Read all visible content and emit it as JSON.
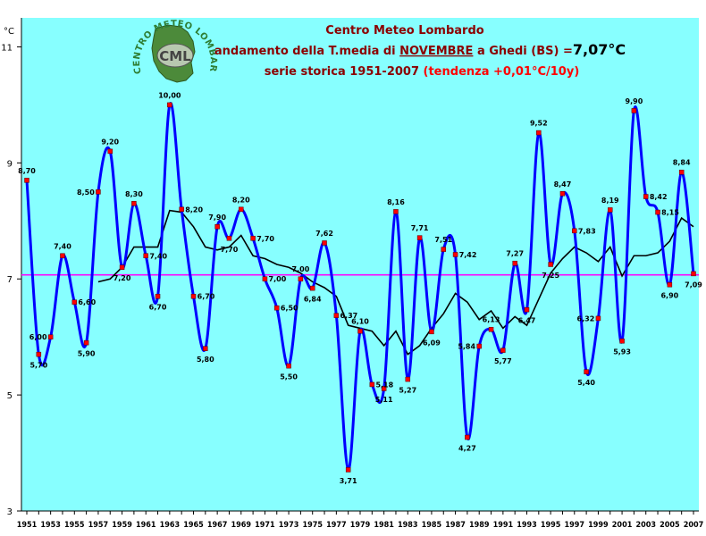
{
  "chart_data": {
    "type": "line",
    "title_line1": "Centro Meteo Lombardo",
    "title_line2_prefix": "andamento della T.media di ",
    "title_line2_month": "NOVEMBRE",
    "title_line2_suffix": " a Ghedi (BS) =",
    "title_line2_value": "7,07°C",
    "title_line3_main": "serie storica 1951-2007 ",
    "title_line3_trend": "(tendenza +0,01°C/10y)",
    "ylabel": "°C",
    "logo_text": "CENTRO METEO LOMBARDO",
    "logo_abbr": "CML",
    "ylim": [
      3,
      11.5
    ],
    "yticks": [
      "3",
      "5",
      "7",
      "9",
      "11"
    ],
    "ytick_values": [
      3,
      5,
      7,
      9,
      11
    ],
    "mean_value": 7.07,
    "x": [
      1951,
      1952,
      1953,
      1954,
      1955,
      1956,
      1957,
      1958,
      1959,
      1960,
      1961,
      1962,
      1963,
      1964,
      1965,
      1966,
      1967,
      1968,
      1969,
      1970,
      1971,
      1972,
      1973,
      1974,
      1975,
      1976,
      1977,
      1978,
      1979,
      1980,
      1981,
      1982,
      1983,
      1984,
      1985,
      1986,
      1987,
      1988,
      1989,
      1990,
      1991,
      1992,
      1993,
      1994,
      1995,
      1996,
      1997,
      1998,
      1999,
      2000,
      2001,
      2002,
      2003,
      2004,
      2005,
      2006,
      2007
    ],
    "xtick_labels": [
      "1951",
      "1953",
      "1955",
      "1957",
      "1959",
      "1961",
      "1963",
      "1965",
      "1967",
      "1969",
      "1971",
      "1973",
      "1975",
      "1977",
      "1979",
      "1981",
      "1983",
      "1985",
      "1987",
      "1989",
      "1991",
      "1993",
      "1995",
      "1997",
      "1999",
      "2001",
      "2003",
      "2005",
      "2007"
    ],
    "series": [
      {
        "values": [
          8.7,
          5.7,
          6.0,
          7.4,
          6.6,
          5.9,
          8.5,
          9.2,
          7.2,
          8.3,
          7.4,
          6.7,
          10.0,
          8.2,
          6.7,
          5.8,
          7.9,
          7.7,
          8.2,
          7.7,
          7.0,
          6.5,
          5.5,
          7.0,
          6.84,
          7.62,
          6.37,
          3.71,
          6.1,
          5.18,
          5.11,
          8.16,
          5.27,
          7.71,
          6.09,
          7.51,
          7.42,
          4.27,
          5.84,
          6.13,
          5.77,
          7.27,
          6.47,
          9.52,
          7.25,
          8.47,
          7.83,
          5.4,
          6.32,
          8.19,
          5.93,
          9.9,
          8.42,
          8.15,
          6.9,
          8.84,
          7.09
        ],
        "labels": [
          "8,70",
          "5,70",
          "6,00",
          "7,40",
          "6,60",
          "5,90",
          "8,50",
          "9,20",
          "7,20",
          "8,30",
          "7,40",
          "6,70",
          "10,00",
          "8,20",
          "6,70",
          "5,80",
          "7,90",
          "7,70",
          "8,20",
          "7,70",
          "7,00",
          "6,50",
          "5,50",
          "7,00",
          "6,84",
          "7,62",
          "6,37",
          "3,71",
          "6,10",
          "5,18",
          "5,11",
          "8,16",
          "5,27",
          "7,71",
          "6,09",
          "7,51",
          "7,42",
          "4,27",
          "5,84",
          "6,13",
          "5,77",
          "7,27",
          "6,47",
          "9,52",
          "7,25",
          "8,47",
          "7,83",
          "5,40",
          "6,32",
          "8,19",
          "5,93",
          "9,90",
          "8,42",
          "8,15",
          "6,90",
          "8,84",
          "7,09"
        ],
        "color": "#0000ff",
        "marker_color": "#ff0000"
      },
      {
        "x": [
          1957,
          1958,
          1959,
          1960,
          1961,
          1962,
          1963,
          1964,
          1965,
          1966,
          1967,
          1968,
          1969,
          1970,
          1971,
          1972,
          1973,
          1974,
          1975,
          1976,
          1977,
          1978,
          1979,
          1980,
          1981,
          1982,
          1983,
          1984,
          1985,
          1986,
          1987,
          1988,
          1989,
          1990,
          1991,
          1992,
          1993,
          1994,
          1995,
          1996,
          1997,
          1998,
          1999,
          2000,
          2001,
          2002,
          2003,
          2004,
          2005,
          2006,
          2007
        ],
        "values": [
          6.95,
          7.0,
          7.2,
          7.55,
          7.55,
          7.55,
          8.18,
          8.15,
          7.9,
          7.55,
          7.5,
          7.55,
          7.75,
          7.4,
          7.35,
          7.25,
          7.2,
          7.1,
          6.95,
          6.85,
          6.7,
          6.2,
          6.15,
          6.1,
          5.85,
          6.1,
          5.7,
          5.85,
          6.15,
          6.4,
          6.75,
          6.6,
          6.3,
          6.45,
          6.15,
          6.35,
          6.2,
          6.65,
          7.1,
          7.35,
          7.55,
          7.45,
          7.3,
          7.55,
          7.05,
          7.4,
          7.4,
          7.45,
          7.65,
          8.05,
          7.9
        ],
        "color": "#000000"
      }
    ],
    "grid": false,
    "legend": "none"
  },
  "colors": {
    "plot_background": "#87ffff",
    "mean_line": "#ff00ff",
    "title_dark": "#8b0000",
    "title_red": "#ff0000"
  }
}
